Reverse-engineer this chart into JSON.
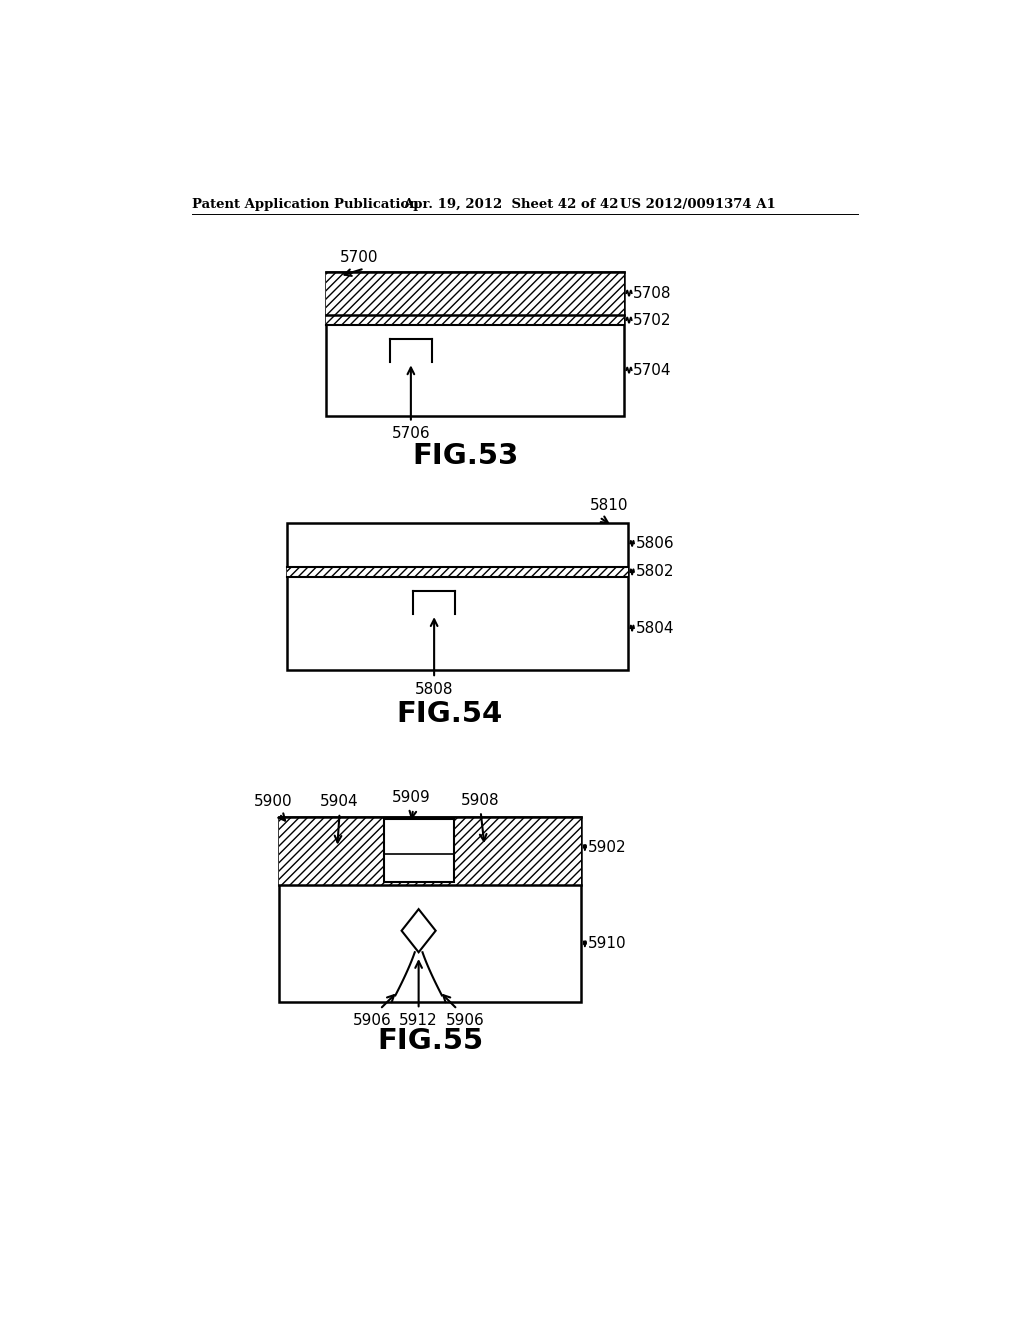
{
  "bg_color": "#ffffff",
  "fig_width": 10.24,
  "fig_height": 13.2,
  "header_left": "Patent Application Publication",
  "header_center": "Apr. 19, 2012  Sheet 42 of 42",
  "header_right": "US 2012/0091374 A1",
  "fig53_label": "FIG.53",
  "fig54_label": "FIG.54",
  "fig55_label": "FIG.55"
}
